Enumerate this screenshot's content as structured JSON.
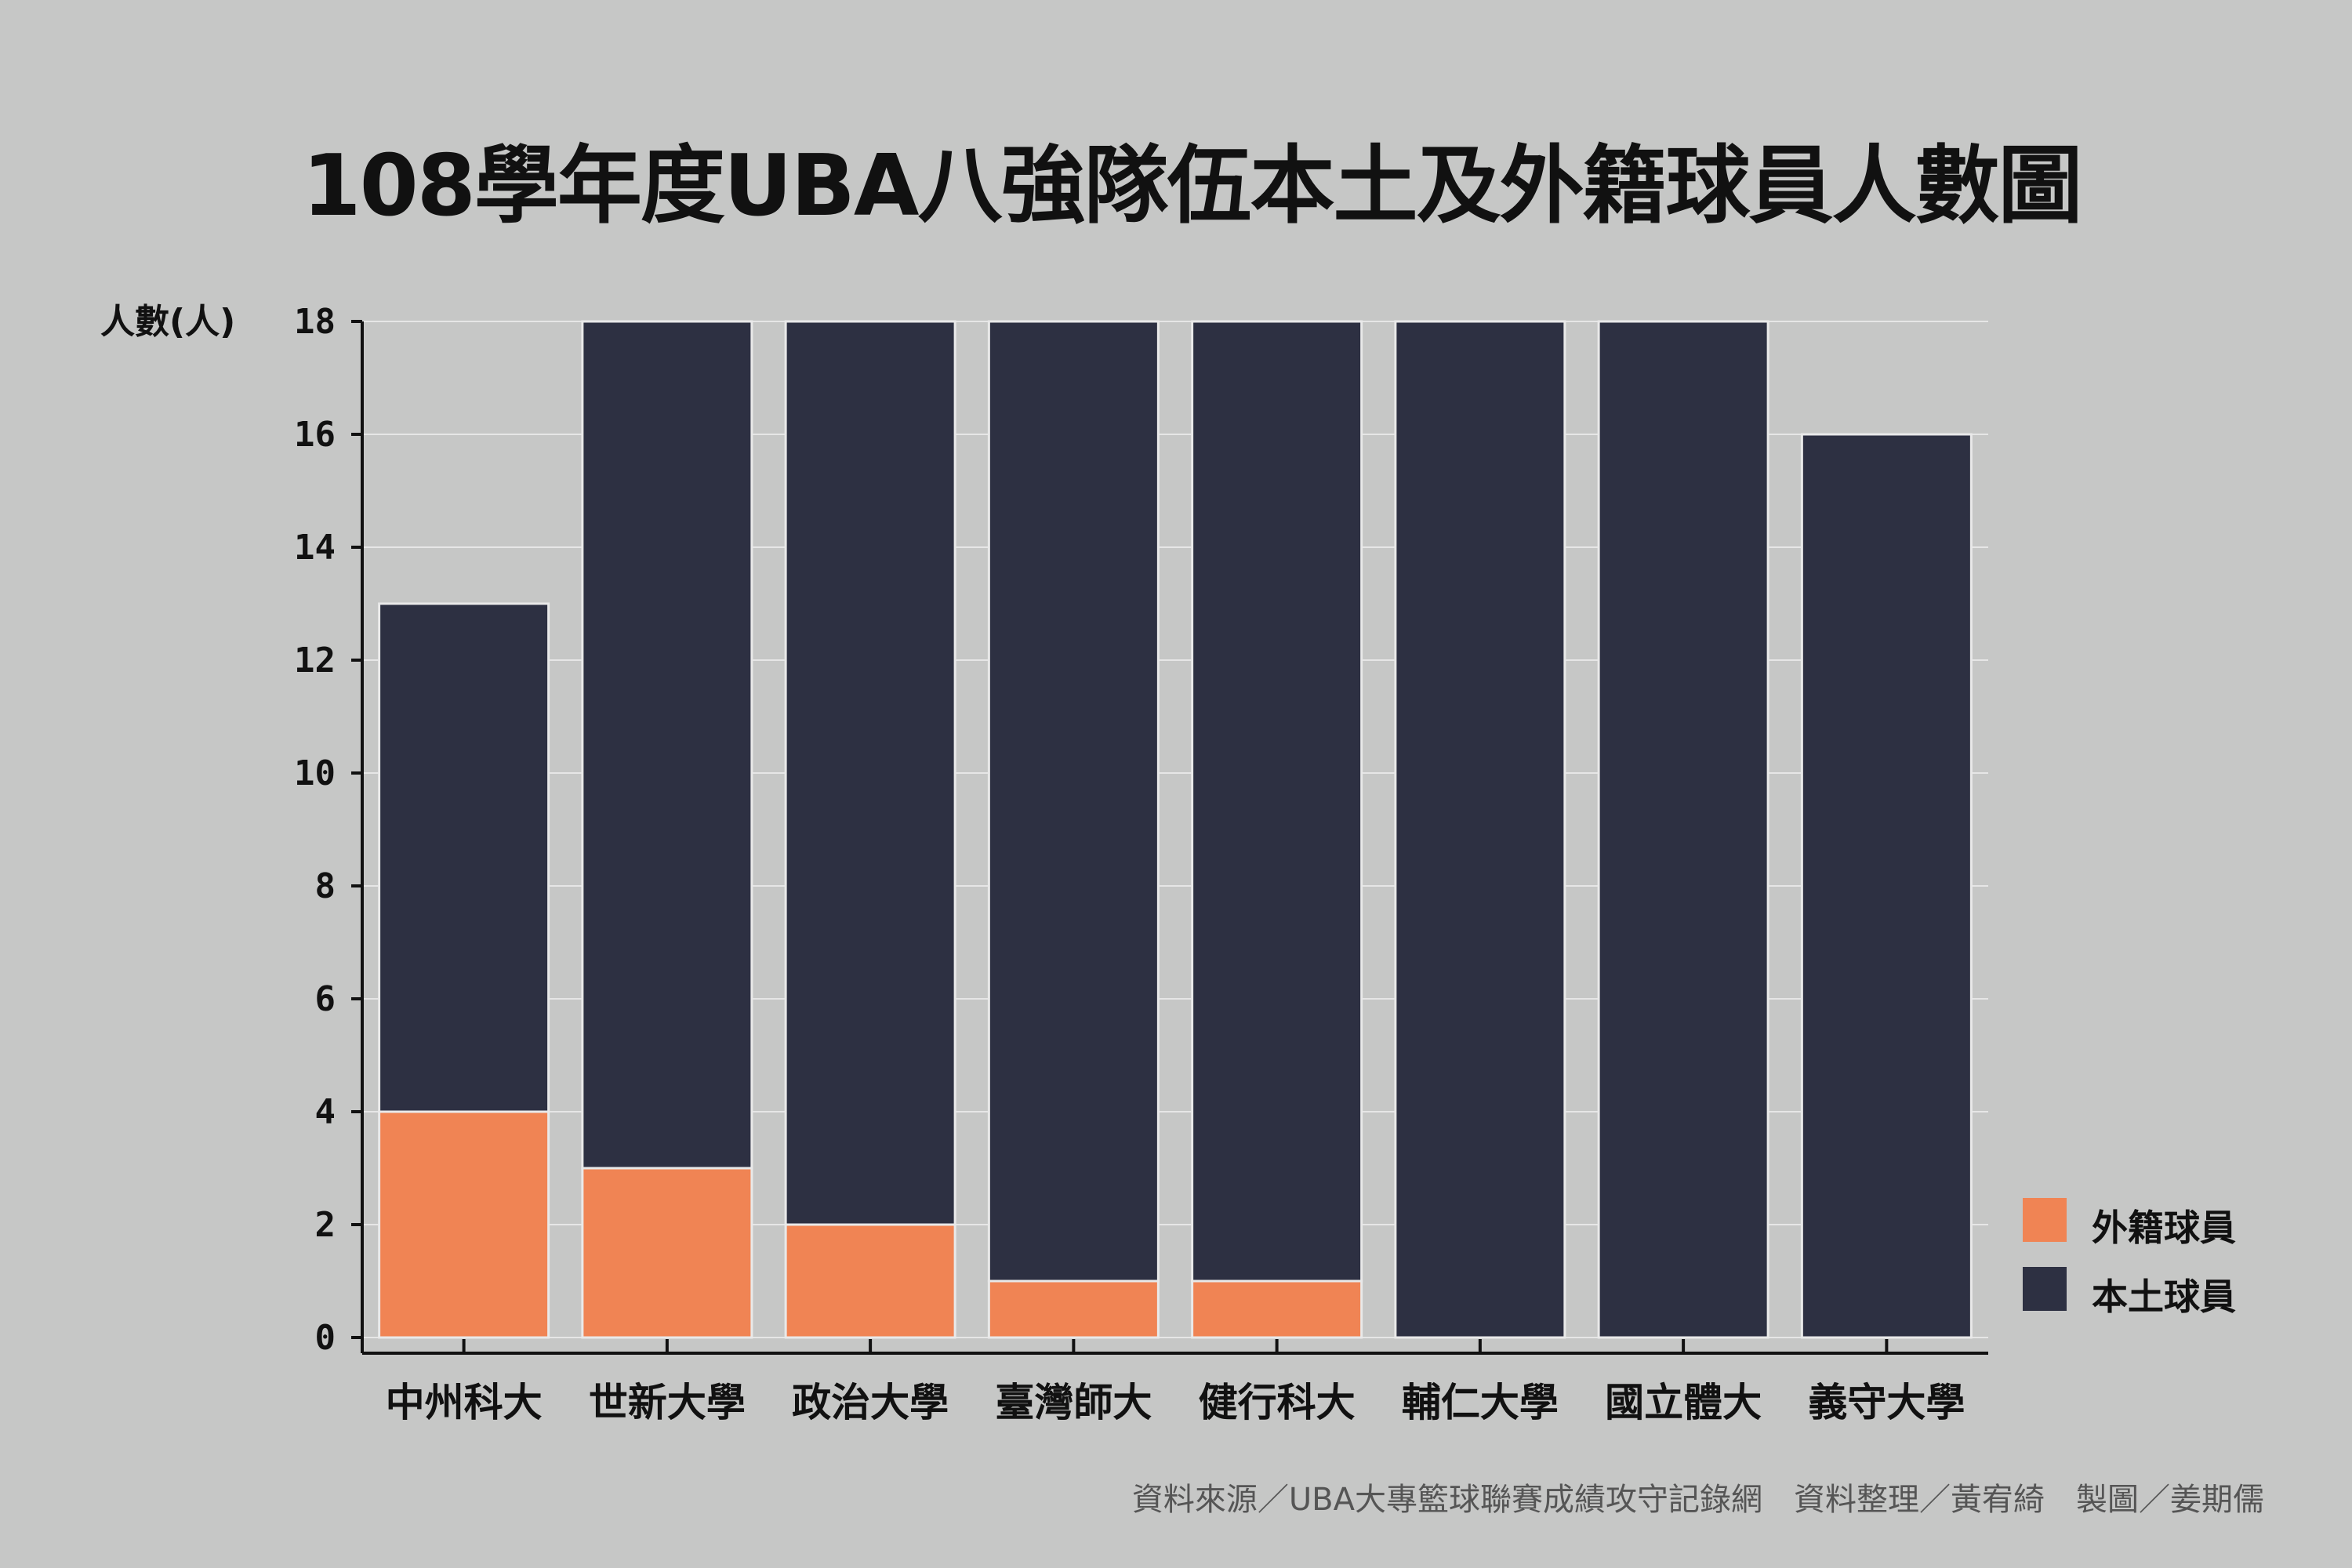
{
  "chart_data": {
    "type": "bar",
    "stacked": true,
    "title": "108學年度UBA八強隊伍本土及外籍球員人數圖",
    "ylabel": "人數(人)",
    "xlabel": "",
    "ylim": [
      0,
      18
    ],
    "yticks": [
      0,
      2,
      4,
      6,
      8,
      10,
      12,
      14,
      16,
      18
    ],
    "grid": true,
    "legend_position": "bottom-right",
    "categories": [
      "中州科大",
      "世新大學",
      "政治大學",
      "臺灣師大",
      "健行科大",
      "輔仁大學",
      "國立體大",
      "義守大學"
    ],
    "series": [
      {
        "name": "外籍球員",
        "color": "#f08454",
        "values": [
          4,
          3,
          2,
          1,
          1,
          0,
          0,
          0
        ]
      },
      {
        "name": "本土球員",
        "color": "#2d3042",
        "values": [
          9,
          15,
          16,
          17,
          17,
          18,
          18,
          16
        ]
      }
    ],
    "legend_order": [
      "外籍球員",
      "本土球員"
    ],
    "source": "資料來源／UBA大專籃球聯賽成績攻守記錄網　資料整理／黃宥綺　製圖／姜期儒"
  }
}
